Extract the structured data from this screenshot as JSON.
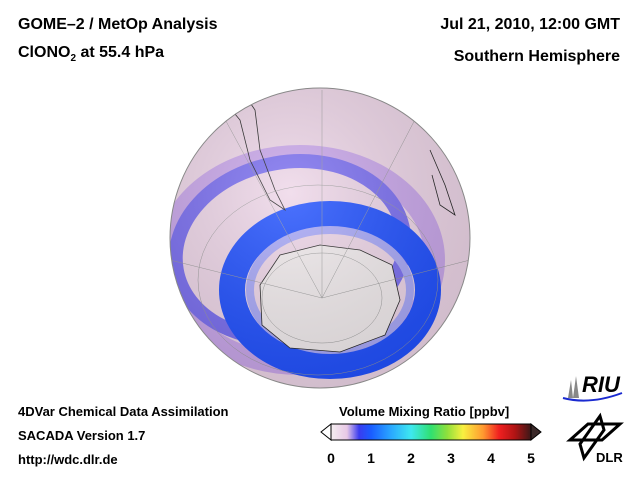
{
  "header": {
    "title_line1": "GOME–2 / MetOp Analysis",
    "species": "ClONO",
    "species_sub": "2",
    "species_level": " at 55.4 hPa",
    "date": "Jul 21, 2010, 12:00 GMT",
    "region": "Southern Hemisphere"
  },
  "footer": {
    "line1": "4DVar Chemical Data Assimilation",
    "line2": "SACADA Version 1.7",
    "line3": "http://wdc.dlr.de"
  },
  "colorbar": {
    "title": "Volume Mixing Ratio [ppbv]",
    "ticks": [
      "0",
      "1",
      "2",
      "3",
      "4",
      "5"
    ],
    "range": [
      0,
      5
    ],
    "colors": [
      "#f4eef0",
      "#e8c8e6",
      "#3a3cf0",
      "#1a5cff",
      "#2aa8ff",
      "#3ee8f0",
      "#30e070",
      "#8ee03c",
      "#f8f040",
      "#ff9a30",
      "#f02020",
      "#e01818",
      "#7a1010",
      "#3a1818"
    ]
  },
  "logos": {
    "riu": "RIU",
    "dlr": "DLR"
  }
}
